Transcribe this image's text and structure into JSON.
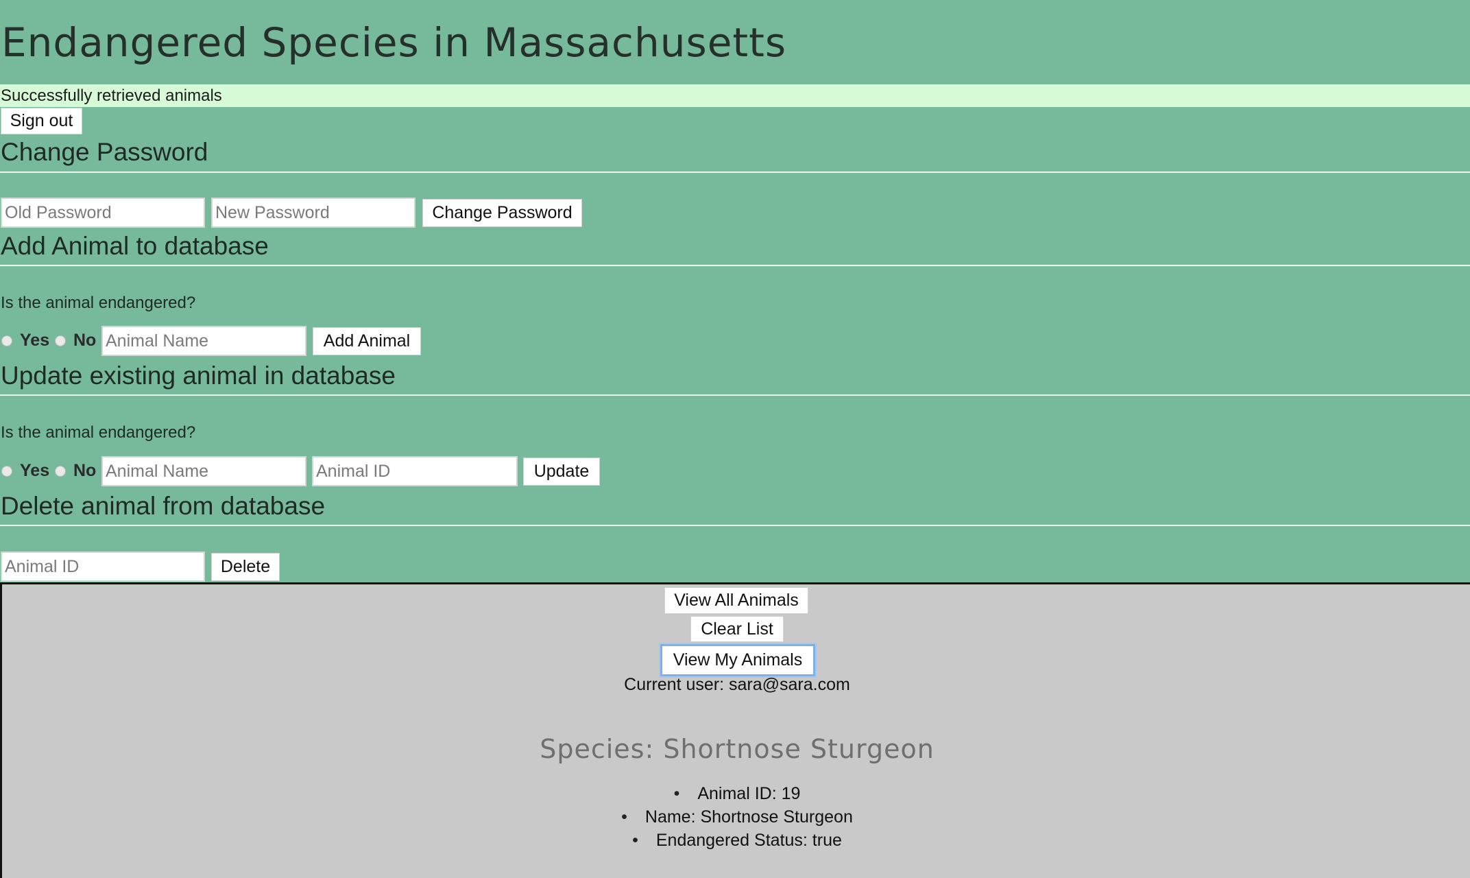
{
  "header": {
    "title": "Endangered Species in Massachusetts",
    "status_message": "Successfully retrieved animals"
  },
  "auth": {
    "sign_out_label": "Sign out"
  },
  "change_password": {
    "heading": "Change Password",
    "old_placeholder": "Old Password",
    "new_placeholder": "New Password",
    "submit_label": "Change Password"
  },
  "add_animal": {
    "heading": "Add Animal to database",
    "question": "Is the animal endangered?",
    "yes_label": "Yes",
    "no_label": "No",
    "name_placeholder": "Animal Name",
    "submit_label": "Add Animal"
  },
  "update_animal": {
    "heading": "Update existing animal in database",
    "question": "Is the animal endangered?",
    "yes_label": "Yes",
    "no_label": "No",
    "name_placeholder": "Animal Name",
    "id_placeholder": "Animal ID",
    "submit_label": "Update"
  },
  "delete_animal": {
    "heading": "Delete animal from database",
    "id_placeholder": "Animal ID",
    "submit_label": "Delete"
  },
  "list_panel": {
    "view_all_label": "View All Animals",
    "clear_label": "Clear List",
    "view_mine_label": "View My Animals",
    "current_user": "Current user: sara@sara.com"
  },
  "animal_card": {
    "species_title": "Species: Shortnose Sturgeon",
    "details": [
      "Animal ID: 19",
      "Name: Shortnose Sturgeon",
      "Endangered Status: true"
    ]
  },
  "colors": {
    "top_background": "#76ba9b",
    "status_background": "#d6fbd6",
    "bottom_background": "#c9c9c9",
    "focus_ring": "#7fb0ea"
  }
}
